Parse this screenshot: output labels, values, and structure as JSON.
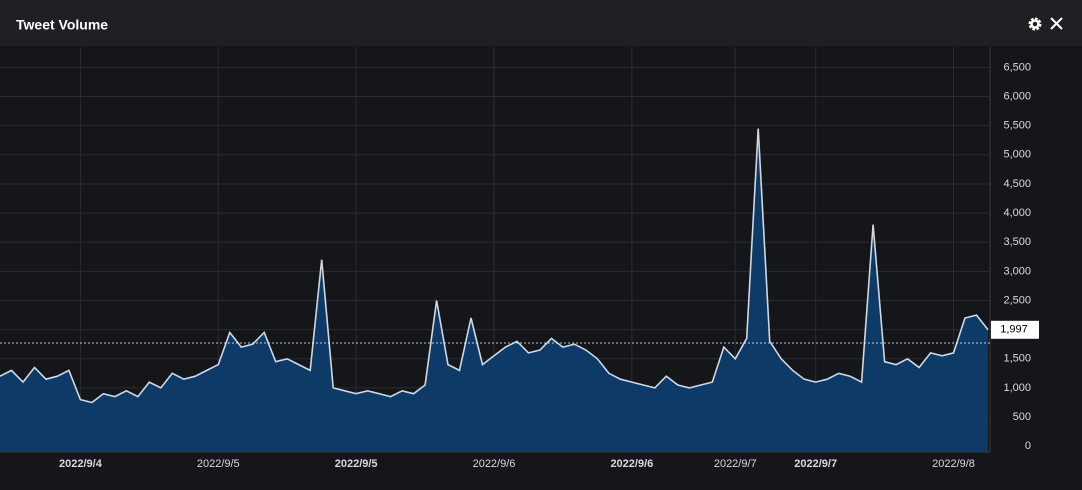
{
  "chart_data": {
    "type": "area",
    "title": "Tweet Volume",
    "categories": [
      null,
      null,
      null,
      null,
      null,
      null,
      null,
      "2022/9/4",
      null,
      null,
      null,
      null,
      null,
      null,
      null,
      null,
      null,
      null,
      null,
      "2022/9/5",
      null,
      null,
      null,
      null,
      null,
      null,
      null,
      null,
      null,
      null,
      null,
      "2022/9/5",
      null,
      null,
      null,
      null,
      null,
      null,
      null,
      null,
      null,
      null,
      null,
      "2022/9/6",
      null,
      null,
      null,
      null,
      null,
      null,
      null,
      null,
      null,
      null,
      null,
      "2022/9/6",
      null,
      null,
      null,
      null,
      null,
      null,
      null,
      null,
      "2022/9/7",
      null,
      null,
      null,
      null,
      null,
      null,
      "2022/9/7",
      null,
      null,
      null,
      null,
      null,
      null,
      null,
      null,
      null,
      null,
      null,
      "2022/9/8",
      null,
      null,
      null
    ],
    "bold_ticks": [
      7,
      31,
      55,
      71
    ],
    "values": [
      1200,
      1300,
      1100,
      1350,
      1150,
      1200,
      1300,
      800,
      750,
      900,
      850,
      950,
      850,
      1100,
      1000,
      1250,
      1150,
      1200,
      1300,
      1400,
      1950,
      1700,
      1750,
      1950,
      1450,
      1500,
      1400,
      1300,
      3200,
      1000,
      950,
      900,
      950,
      900,
      850,
      950,
      900,
      1050,
      2500,
      1400,
      1300,
      2200,
      1400,
      1550,
      1700,
      1800,
      1600,
      1650,
      1850,
      1700,
      1750,
      1650,
      1500,
      1250,
      1150,
      1100,
      1050,
      1000,
      1200,
      1050,
      1000,
      1050,
      1100,
      1700,
      1500,
      1850,
      5450,
      1800,
      1500,
      1300,
      1150,
      1100,
      1150,
      1250,
      1200,
      1100,
      3800,
      1450,
      1400,
      1500,
      1350,
      1600,
      1550,
      1600,
      2200,
      2250,
      1997
    ],
    "color": "#0e3a68",
    "line_color": "#d3d7dd",
    "ylim": [
      -100,
      6850
    ],
    "yticks": [
      0,
      500,
      {
        "value": 1000,
        "label": "1,000"
      },
      {
        "value": 1500,
        "label": "1,500"
      },
      {
        "value": 2000,
        "label": "2,000"
      },
      {
        "value": 2500,
        "label": "2,500"
      },
      {
        "value": 3000,
        "label": "3,000"
      },
      {
        "value": 3500,
        "label": "3,500"
      },
      {
        "value": 4000,
        "label": "4,000"
      },
      {
        "value": 4500,
        "label": "4,500"
      },
      {
        "value": 5000,
        "label": "5,000"
      },
      {
        "value": 5500,
        "label": "5,500"
      },
      {
        "value": 6000,
        "label": "6,000"
      },
      {
        "value": 6500,
        "label": "6,500"
      }
    ],
    "last_value": {
      "value": 1997,
      "label": "1,997"
    },
    "dashed_line": 1770,
    "grid": true
  }
}
